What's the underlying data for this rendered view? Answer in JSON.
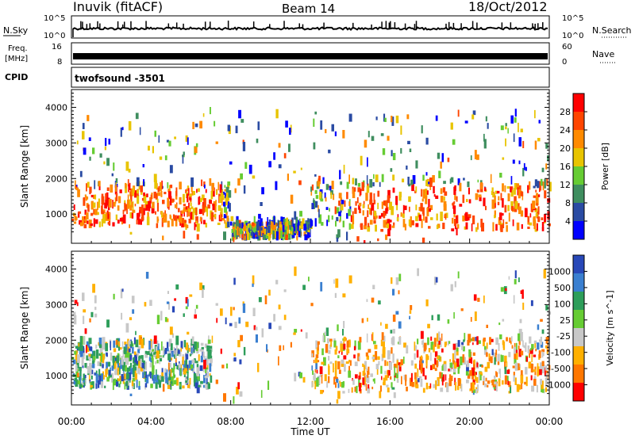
{
  "header": {
    "station": "Inuvik (fitACF)",
    "beam": "Beam 14",
    "date": "18/Oct/2012"
  },
  "panels": {
    "nsky_label": "N.Sky",
    "nsky_top_tick": "10^5",
    "nsky_bottom_tick": "10^0",
    "nsearch_label": "N.Search",
    "nsearch_top_tick": "10^5",
    "nsearch_bottom_tick": "10^0",
    "freq_label_line1": "Freq.",
    "freq_label_line2": "[MHz]",
    "freq_top_tick": "16",
    "freq_bottom_tick": "8",
    "nave_label": "Nave",
    "nave_top_tick": "60",
    "nave_bottom_tick": "0",
    "cpid_label": "CPID",
    "cpid_value": "twofsound -3501"
  },
  "chart_data": [
    {
      "type": "heatmap",
      "name": "power",
      "ylabel": "Slant Range [km]",
      "xlabel": "",
      "ylim": [
        180,
        4500
      ],
      "yticks": [
        1000,
        2000,
        3000,
        4000
      ],
      "x_ticks": [
        "00:00",
        "04:00",
        "08:00",
        "12:00",
        "16:00",
        "20:00",
        "00:00"
      ],
      "colorbar_label": "Power [dB]",
      "colorbar_ticks": [
        "4",
        "8",
        "12",
        "16",
        "20",
        "24",
        "28"
      ],
      "colors": [
        "#0000ff",
        "#2a4ba3",
        "#3f8e5f",
        "#66cc33",
        "#e8c400",
        "#ff8a00",
        "#ff4500",
        "#ff0000"
      ],
      "regions": [
        {
          "t0": 0.0,
          "t1": 8.0,
          "r0": 600,
          "r1": 1800,
          "intensity": 0.85
        },
        {
          "t0": 12.0,
          "t1": 24.0,
          "r0": 500,
          "r1": 1900,
          "intensity": 0.8
        },
        {
          "t0": 8.0,
          "t1": 12.0,
          "r0": 250,
          "r1": 700,
          "intensity": 0.4
        }
      ]
    },
    {
      "type": "heatmap",
      "name": "velocity",
      "ylabel": "Slant Range [km]",
      "xlabel": "Time UT",
      "ylim": [
        180,
        4500
      ],
      "yticks": [
        1000,
        2000,
        3000,
        4000
      ],
      "x_ticks": [
        "00:00",
        "04:00",
        "08:00",
        "12:00",
        "16:00",
        "20:00",
        "00:00"
      ],
      "colorbar_label": "Velocity [m s^-1]",
      "colorbar_ticks": [
        "1000",
        "500",
        "100",
        "25",
        "-25",
        "-100",
        "-500",
        "-1000"
      ],
      "colors": [
        "#2848b8",
        "#3a7fd0",
        "#2e9e5a",
        "#66cc33",
        "#c8c8c8",
        "#ffb000",
        "#ff7700",
        "#ff0000"
      ],
      "regions": [
        {
          "t0": 0.0,
          "t1": 7.0,
          "r0": 600,
          "r1": 1900,
          "bias": "positive"
        },
        {
          "t0": 12.0,
          "t1": 24.0,
          "r0": 500,
          "r1": 2000,
          "bias": "negative"
        }
      ]
    }
  ]
}
